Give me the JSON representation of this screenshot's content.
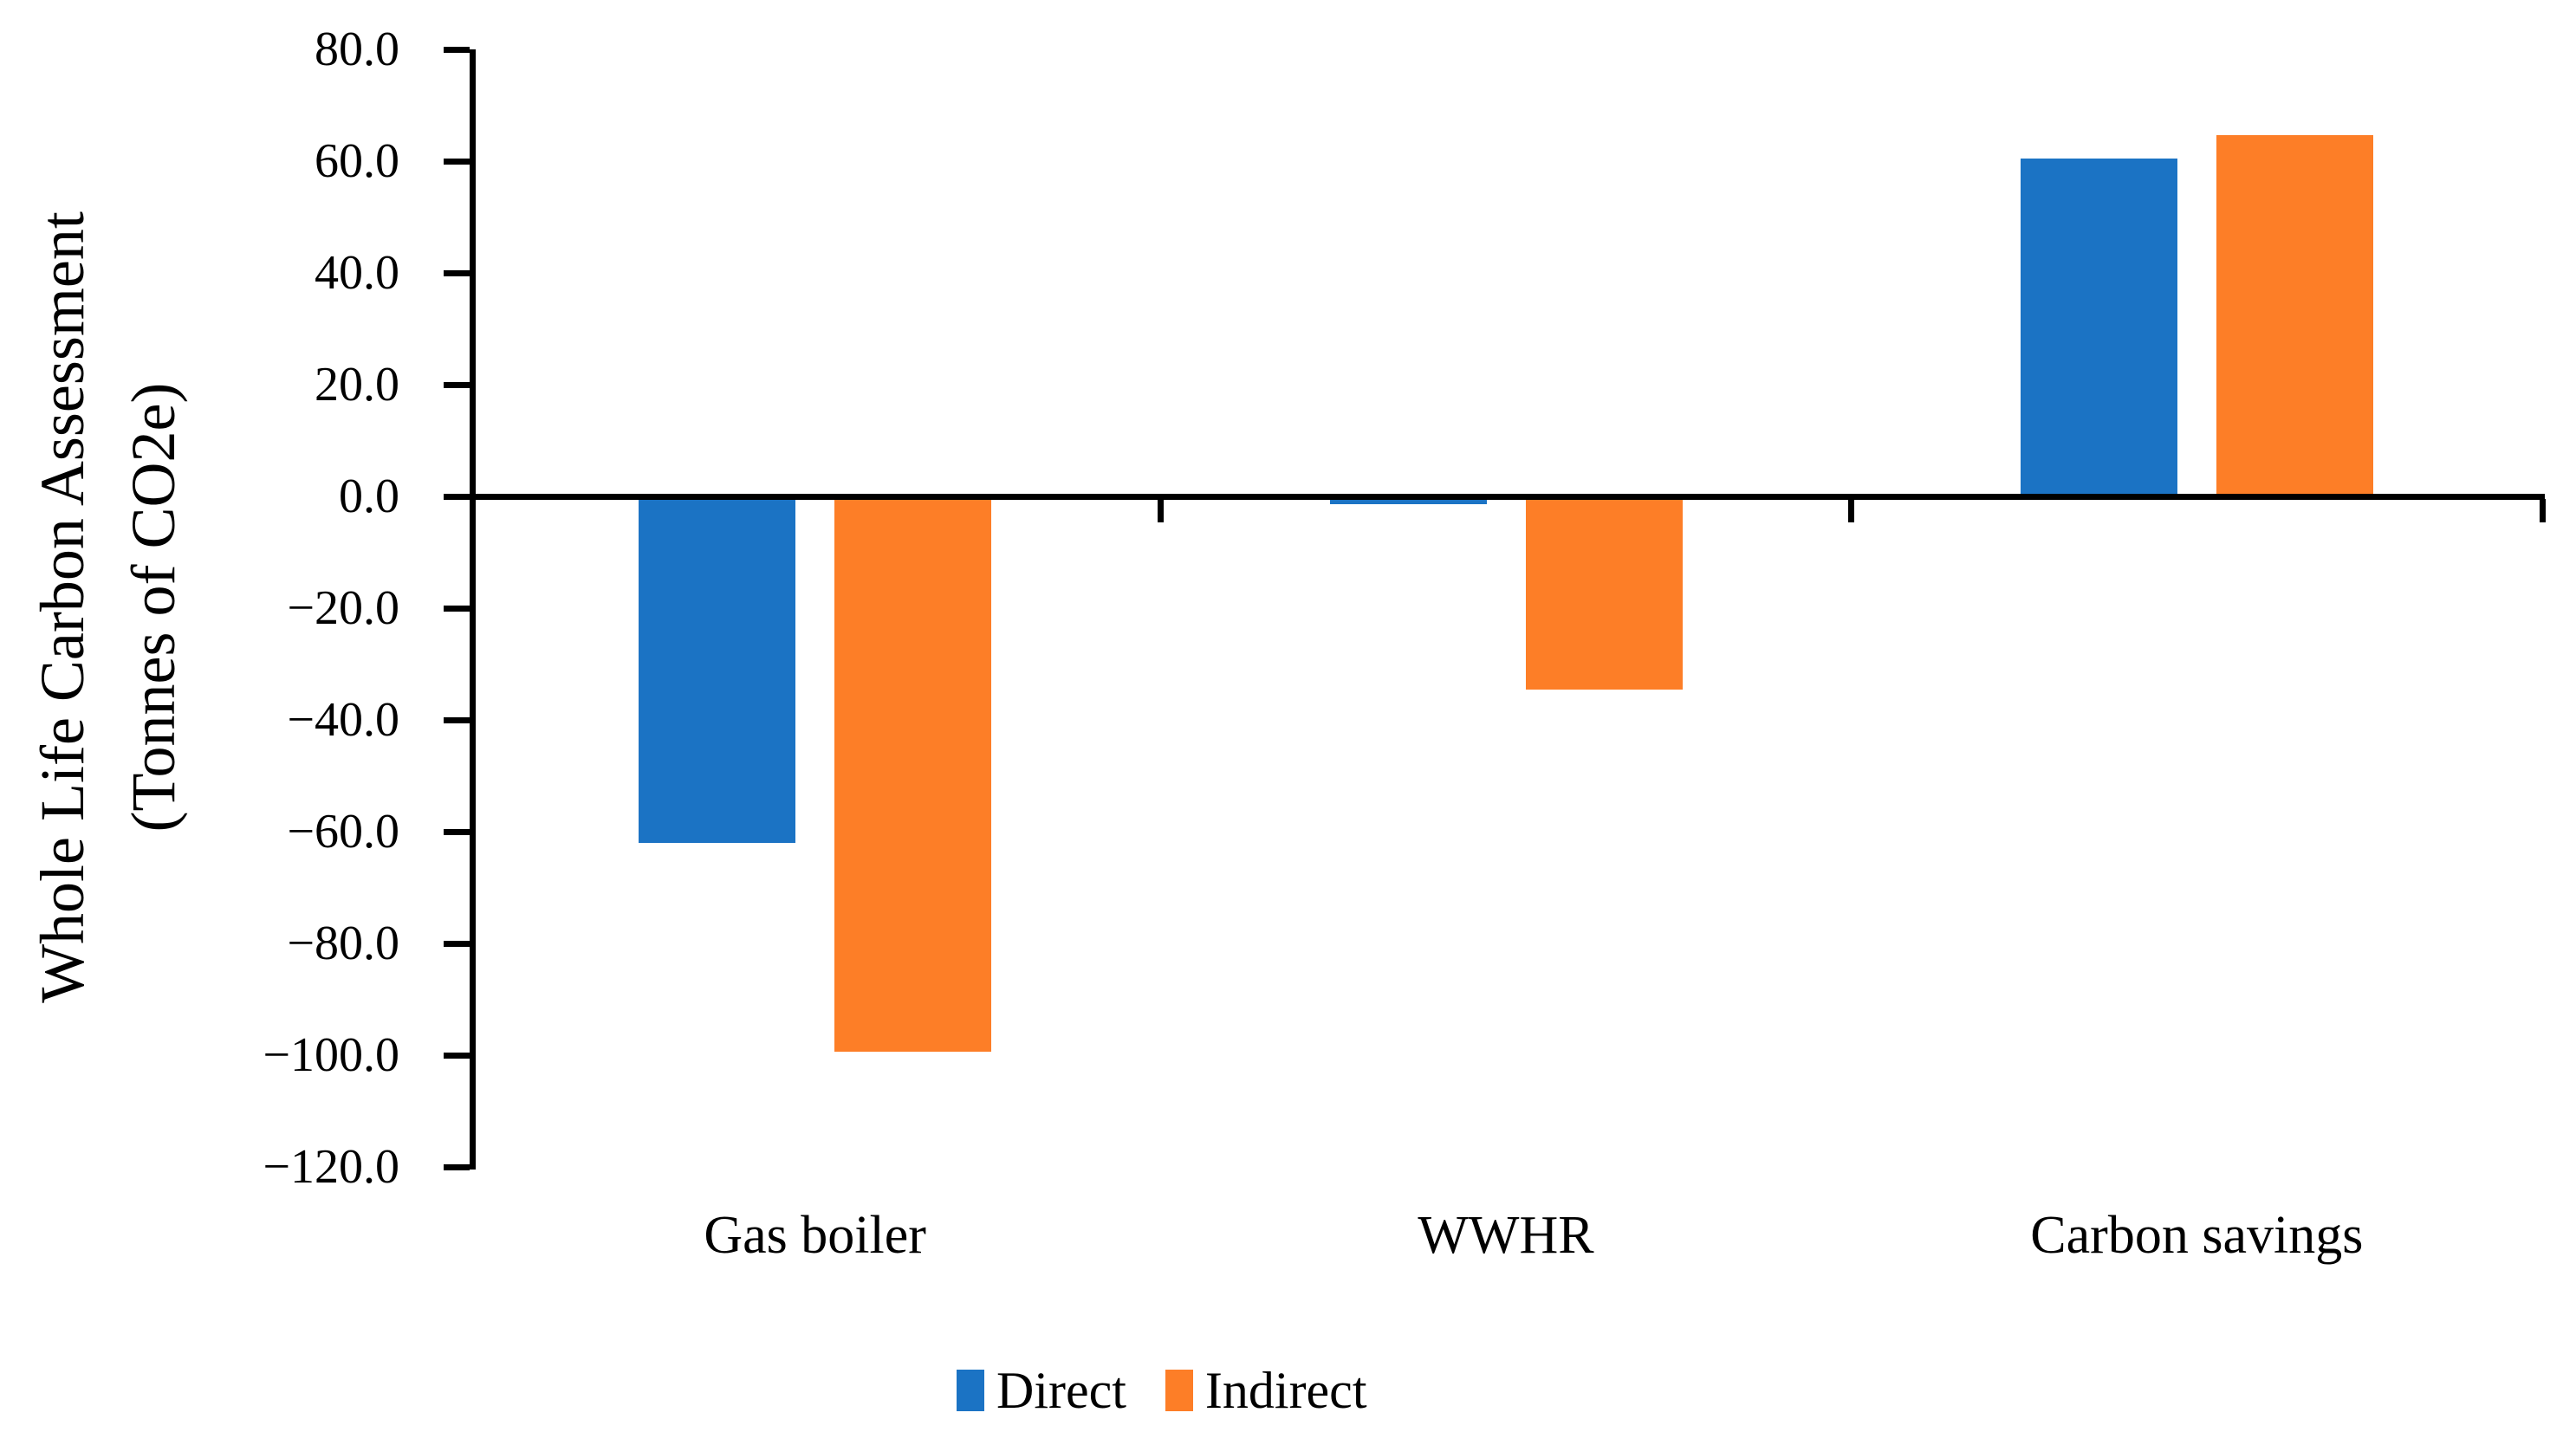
{
  "chart_data": {
    "type": "bar",
    "title": "",
    "categories": [
      "Gas boiler",
      "WWHR",
      "Carbon savings"
    ],
    "series": [
      {
        "name": "Direct",
        "color": "#1B73C4",
        "values": [
          -62.0,
          -1.4,
          60.5
        ]
      },
      {
        "name": "Indirect",
        "color": "#FD7E27",
        "values": [
          -99.4,
          -34.6,
          64.6
        ]
      }
    ],
    "ylabel_line1": "Whole Life Carbon Assessment",
    "ylabel_line2": "(Tonnes of CO2e)",
    "xlabel": "",
    "ylim": [
      -120,
      80
    ],
    "ytick_step": 20,
    "ytick_labels": [
      "80.0",
      "60.0",
      "40.0",
      "20.0",
      "0.0",
      "−20.0",
      "−40.0",
      "−60.0",
      "−80.0",
      "−100.0",
      "−120.0"
    ],
    "grid": false,
    "legend_position": "bottom"
  },
  "colors": {
    "axis": "#000000",
    "background": "#FFFFFF",
    "direct": "#1B73C4",
    "indirect": "#FD7E27"
  }
}
